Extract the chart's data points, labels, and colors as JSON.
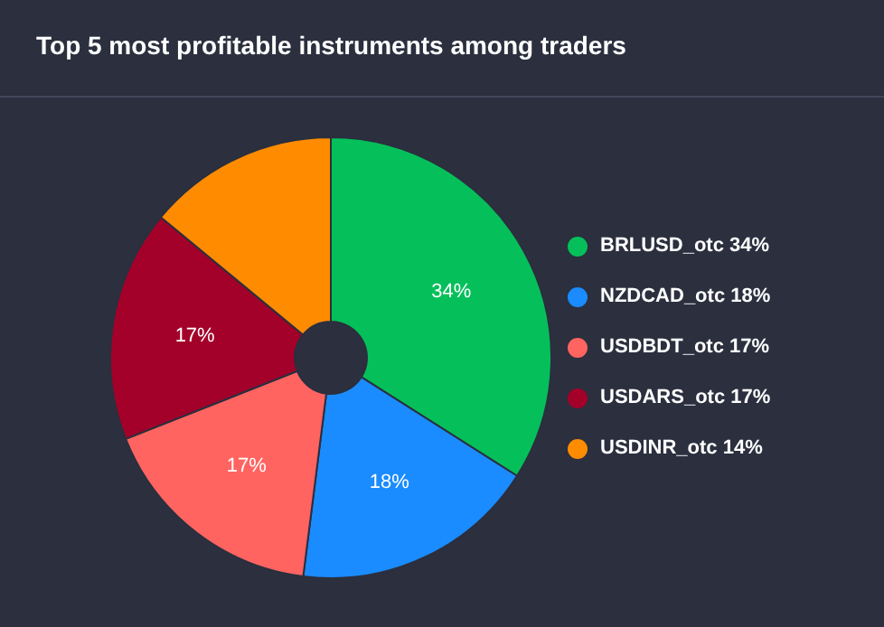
{
  "chart_data": {
    "type": "donut",
    "title": "Top 5 most profitable instruments among traders",
    "categories": [
      "BRLUSD_otc 34%",
      "NZDCAD_otc 18%",
      "USDBDT_otc 17%",
      "USDARS_otc 17%",
      "USDINR_otc 14%"
    ],
    "values": [
      34,
      18,
      17,
      17,
      14
    ],
    "colors": [
      "#05c05a",
      "#1a8cff",
      "#ff6461",
      "#a3002a",
      "#ff8c00"
    ],
    "value_labels": [
      "34%",
      "18%",
      "17%",
      "17%",
      null
    ],
    "legend": "right"
  }
}
